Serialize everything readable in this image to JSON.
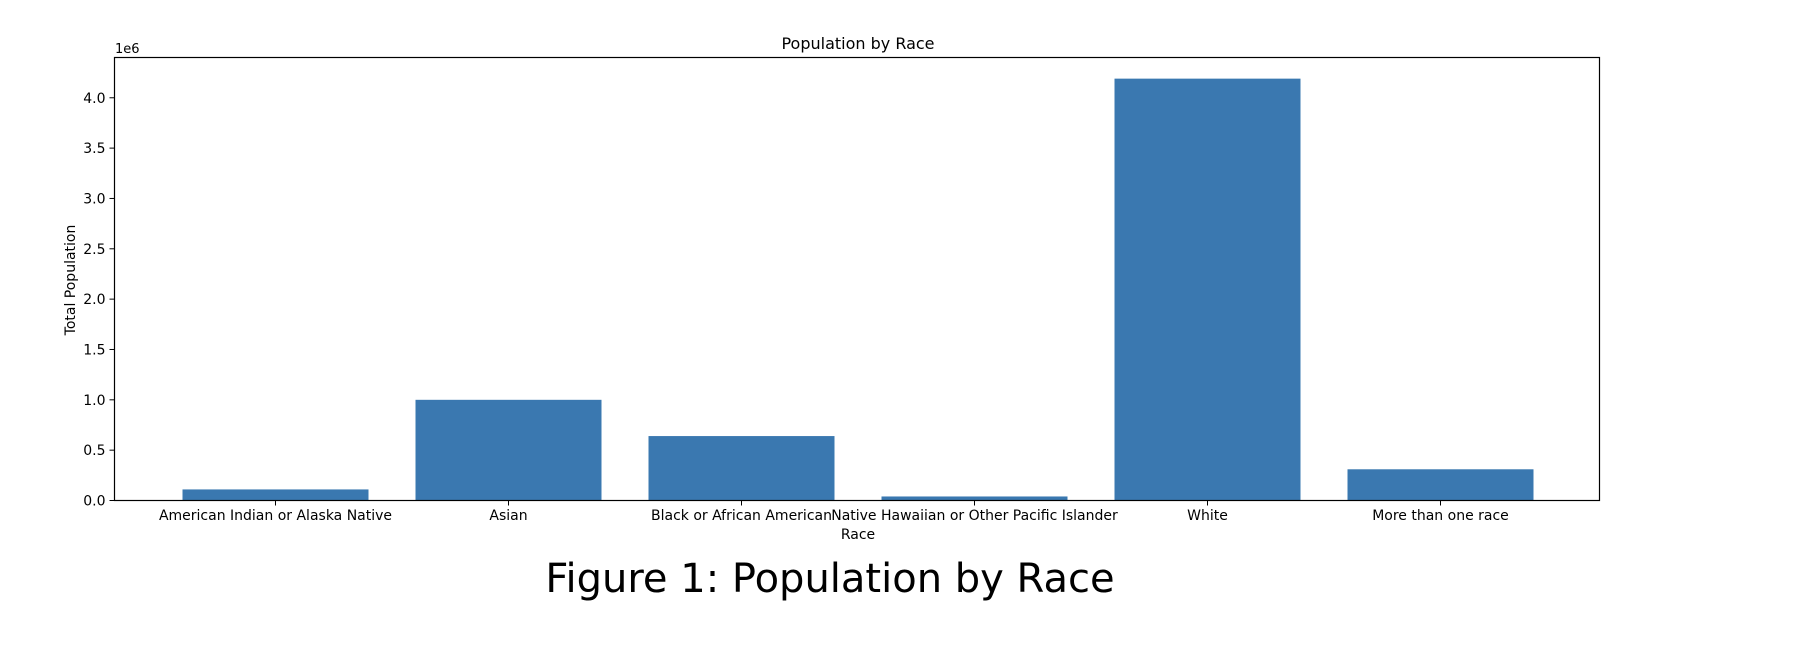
{
  "figure_caption": "Figure 1: Population by Race",
  "chart_data": {
    "type": "bar",
    "title": "Population by Race",
    "xlabel": "Race",
    "ylabel": "Total Population",
    "y_offset_label": "1e6",
    "categories": [
      "American Indian or Alaska Native",
      "Asian",
      "Black or African American",
      "Native Hawaiian or Other Pacific Islander",
      "White",
      "More than one race"
    ],
    "values": [
      0.11,
      1.0,
      0.64,
      0.04,
      4.19,
      0.31
    ],
    "ylim": [
      0,
      4.4
    ],
    "yticks": [
      "0.0",
      "0.5",
      "1.0",
      "1.5",
      "2.0",
      "2.5",
      "3.0",
      "3.5",
      "4.0"
    ],
    "grid": false,
    "legend": "none",
    "colors": {
      "bar": "#3a78b0",
      "axis": "#000000"
    }
  }
}
